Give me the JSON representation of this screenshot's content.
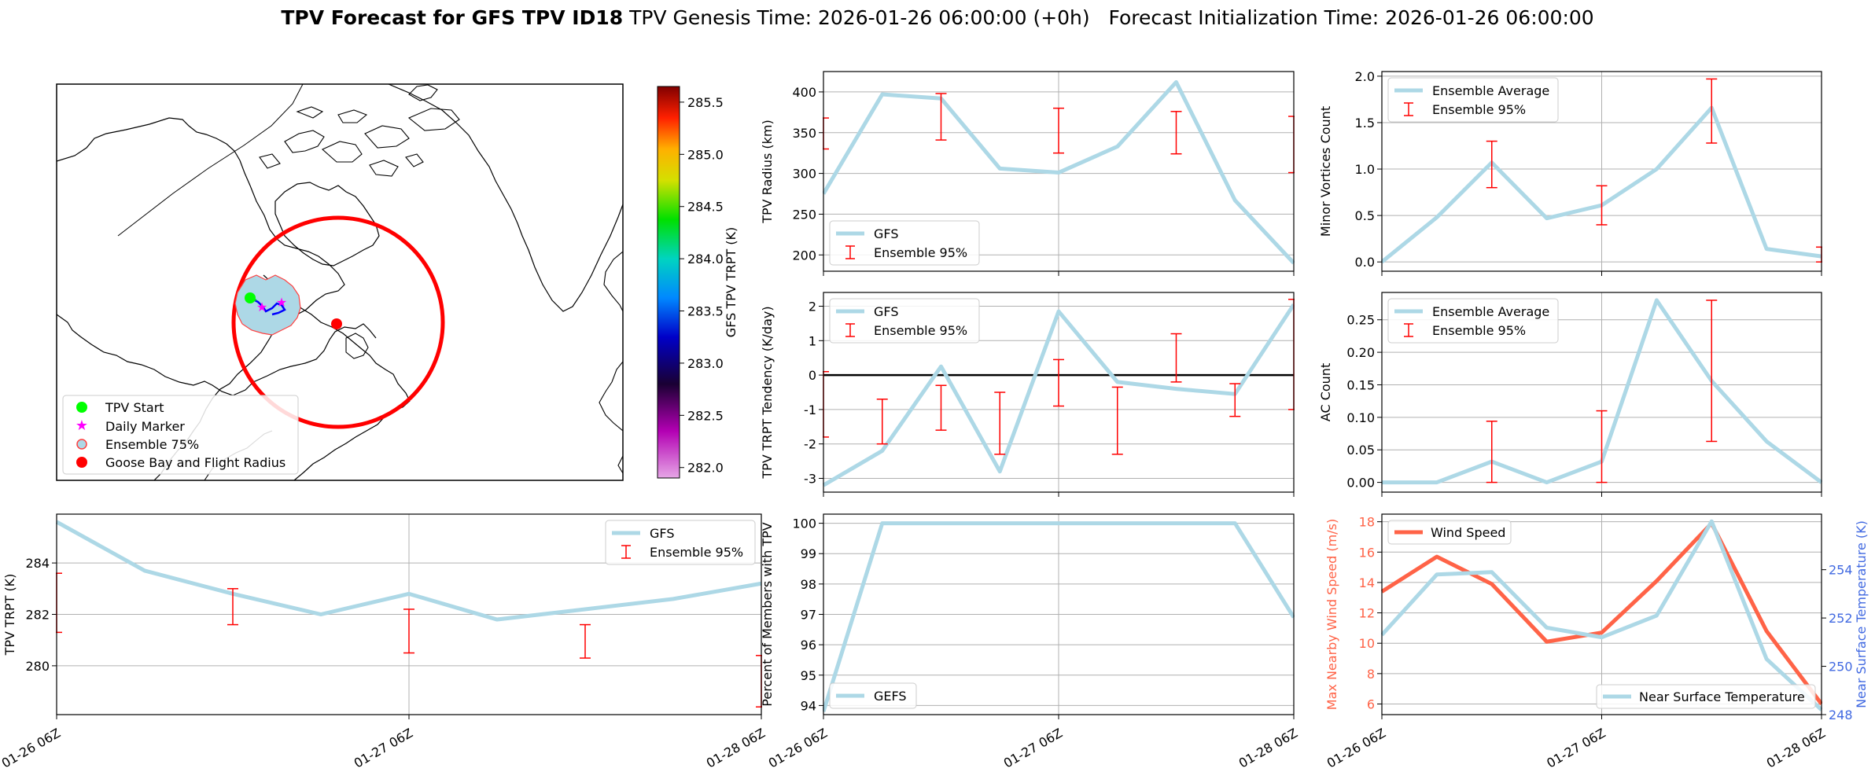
{
  "figure": {
    "title_bold": "TPV Forecast for GFS TPV ID18",
    "title_rest": "TPV Genesis Time: 2026-01-26 06:00:00 (+0h)   Forecast Initialization Time: 2026-01-26 06:00:00"
  },
  "colors": {
    "gfs_line": "#add8e6",
    "error_bar": "#ff0000",
    "wind_line": "#ff6347",
    "temp_axis": "#4169e1",
    "grid": "#b0b0b0",
    "start_marker": "#00ff00",
    "daily_marker": "#ff00ff",
    "flight_radius": "#ff0000",
    "tpv_fill": "#add8e6"
  },
  "map": {
    "legend": [
      "TPV Start",
      "Daily Marker",
      "Ensemble 75%",
      "Goose Bay and Flight Radius"
    ],
    "colorbar": {
      "label": "GFS TPV TRPT (K)",
      "min": 281.9,
      "max": 285.65,
      "ticks": [
        "285.5",
        "285.0",
        "284.5",
        "284.0",
        "283.5",
        "283.0",
        "282.5",
        "282.0"
      ],
      "tick_values": [
        285.5,
        285.0,
        284.5,
        284.0,
        283.5,
        283.0,
        282.5,
        282.0
      ]
    }
  },
  "chart_data": [
    {
      "id": "trpt",
      "type": "line",
      "ylabel": "TPV TRPT (K)",
      "x": [
        0,
        0.25,
        0.5,
        0.75,
        1.0,
        1.25,
        1.5,
        1.75,
        2.0
      ],
      "xlim": [
        0,
        2
      ],
      "xticks": [
        "01-26 06Z",
        "01-27 06Z",
        "01-28 06Z"
      ],
      "ylim": [
        278.1,
        285.9
      ],
      "yticks": [
        280,
        282,
        284
      ],
      "series": [
        {
          "name": "GFS",
          "values": [
            285.6,
            283.7,
            282.8,
            282.0,
            282.8,
            281.8,
            282.2,
            282.6,
            283.2
          ]
        }
      ],
      "errorbars": {
        "name": "Ensemble 95%",
        "x": [
          0,
          0.5,
          1.0,
          1.5,
          2.0
        ],
        "low": [
          281.3,
          281.6,
          280.5,
          280.3,
          278.4
        ],
        "high": [
          283.6,
          283.0,
          282.2,
          281.6,
          280.4
        ]
      },
      "legend": [
        "GFS",
        "Ensemble 95%"
      ],
      "legend_loc": "upper right"
    },
    {
      "id": "radius",
      "type": "line",
      "ylabel": "TPV Radius (km)",
      "x": [
        0,
        0.25,
        0.5,
        0.75,
        1.0,
        1.25,
        1.5,
        1.75,
        2.0
      ],
      "xlim": [
        0,
        2
      ],
      "xticks": [],
      "ylim": [
        180,
        425
      ],
      "yticks": [
        200,
        250,
        300,
        350,
        400
      ],
      "series": [
        {
          "name": "GFS",
          "values": [
            275,
            397,
            392,
            306,
            301,
            333,
            412,
            267,
            190
          ]
        }
      ],
      "errorbars": {
        "name": "Ensemble 95%",
        "x": [
          0,
          0.5,
          1.0,
          1.5,
          2.0
        ],
        "low": [
          330,
          341,
          325,
          324,
          301
        ],
        "high": [
          368,
          398,
          380,
          376,
          370
        ]
      },
      "legend": [
        "GFS",
        "Ensemble 95%"
      ],
      "legend_loc": "lower left"
    },
    {
      "id": "tendency",
      "type": "line",
      "ylabel": "TPV TRPT Tendency (K/day)",
      "x": [
        0,
        0.25,
        0.5,
        0.75,
        1.0,
        1.25,
        1.5,
        1.75,
        2.0
      ],
      "xlim": [
        0,
        2
      ],
      "xticks": [],
      "ylim": [
        -3.4,
        2.4
      ],
      "yticks": [
        -3,
        -2,
        -1,
        0,
        1,
        2
      ],
      "series": [
        {
          "name": "GFS",
          "values": [
            -3.2,
            -2.2,
            0.25,
            -2.8,
            1.85,
            -0.2,
            -0.4,
            -0.55,
            2.05
          ]
        }
      ],
      "errorbars": {
        "name": "Ensemble 95%",
        "x": [
          0,
          0.25,
          0.5,
          0.75,
          1.0,
          1.25,
          1.5,
          1.75,
          2.0
        ],
        "low": [
          -1.8,
          -2.0,
          -1.6,
          -2.3,
          -0.9,
          -2.3,
          -0.2,
          -1.2,
          -1.0
        ],
        "high": [
          0.1,
          -0.7,
          -0.3,
          -0.5,
          0.45,
          -0.35,
          1.2,
          -0.25,
          2.2
        ]
      },
      "hline": 0,
      "legend": [
        "GFS",
        "Ensemble 95%"
      ],
      "legend_loc": "upper left"
    },
    {
      "id": "members",
      "type": "line",
      "ylabel": "Percent of Members with TPV",
      "x": [
        0,
        0.25,
        0.5,
        0.75,
        1.0,
        1.25,
        1.5,
        1.75,
        2.0
      ],
      "xlim": [
        0,
        2
      ],
      "xticks": [
        "01-26 06Z",
        "01-27 06Z",
        "01-28 06Z"
      ],
      "ylim": [
        93.7,
        100.3
      ],
      "yticks": [
        94,
        95,
        96,
        97,
        98,
        99,
        100
      ],
      "series": [
        {
          "name": "GEFS",
          "values": [
            93.8,
            100,
            100,
            100,
            100,
            100,
            100,
            100,
            96.9
          ]
        }
      ],
      "legend": [
        "GEFS"
      ],
      "legend_loc": "lower left"
    },
    {
      "id": "minor",
      "type": "line",
      "ylabel": "Minor Vortices Count",
      "x": [
        0,
        0.25,
        0.5,
        0.75,
        1.0,
        1.25,
        1.5,
        1.75,
        2.0
      ],
      "xlim": [
        0,
        2
      ],
      "xticks": [],
      "ylim": [
        -0.1,
        2.05
      ],
      "yticks": [
        "0.0",
        "0.5",
        "1.0",
        "1.5",
        "2.0"
      ],
      "series": [
        {
          "name": "Ensemble Average",
          "values": [
            0.0,
            0.48,
            1.07,
            0.47,
            0.61,
            1.0,
            1.66,
            0.14,
            0.06
          ]
        }
      ],
      "errorbars": {
        "name": "Ensemble 95%",
        "x": [
          0.5,
          1.0,
          1.5,
          2.0
        ],
        "low": [
          0.8,
          0.4,
          1.28,
          0.0
        ],
        "high": [
          1.3,
          0.82,
          1.97,
          0.16
        ]
      },
      "legend": [
        "Ensemble Average",
        "Ensemble 95%"
      ],
      "legend_loc": "upper left"
    },
    {
      "id": "ac",
      "type": "line",
      "ylabel": "AC Count",
      "x": [
        0,
        0.25,
        0.5,
        0.75,
        1.0,
        1.25,
        1.5,
        1.75,
        2.0
      ],
      "xlim": [
        0,
        2
      ],
      "xticks": [],
      "ylim": [
        -0.015,
        0.292
      ],
      "yticks": [
        "0.00",
        "0.05",
        "0.10",
        "0.15",
        "0.20",
        "0.25"
      ],
      "series": [
        {
          "name": "Ensemble Average",
          "values": [
            0.0,
            0.0,
            0.032,
            0.0,
            0.032,
            0.28,
            0.156,
            0.063,
            0.0
          ]
        }
      ],
      "errorbars": {
        "name": "Ensemble 95%",
        "x": [
          0.5,
          1.0,
          1.5
        ],
        "low": [
          0.0,
          0.0,
          0.063
        ],
        "high": [
          0.094,
          0.11,
          0.28
        ]
      },
      "legend": [
        "Ensemble Average",
        "Ensemble 95%"
      ],
      "legend_loc": "upper left"
    },
    {
      "id": "wind",
      "type": "line",
      "ylabel": "Max Nearby Wind Speed (m/s)",
      "ylabel_right": "Near Surface Temperature (K)",
      "x": [
        0,
        0.25,
        0.5,
        0.75,
        1.0,
        1.25,
        1.5,
        1.75,
        2.0
      ],
      "xlim": [
        0,
        2
      ],
      "xticks": [
        "01-26 06Z",
        "01-27 06Z",
        "01-28 06Z"
      ],
      "ylim": [
        5.3,
        18.5
      ],
      "yticks": [
        6,
        8,
        10,
        12,
        14,
        16,
        18
      ],
      "ylim_right": [
        248,
        256.3
      ],
      "yticks_right": [
        248,
        250,
        252,
        254
      ],
      "series": [
        {
          "name": "Wind Speed",
          "axis": "left",
          "values": [
            13.4,
            15.7,
            13.9,
            10.1,
            10.7,
            14.1,
            17.9,
            10.8,
            6.0
          ]
        },
        {
          "name": "Near Surface Temperature",
          "axis": "right",
          "values": [
            251.3,
            253.8,
            253.9,
            251.6,
            251.2,
            252.1,
            256.0,
            250.3,
            248.2
          ]
        }
      ],
      "legend": [
        "Wind Speed"
      ],
      "legend_right": [
        "Near Surface Temperature"
      ]
    }
  ]
}
